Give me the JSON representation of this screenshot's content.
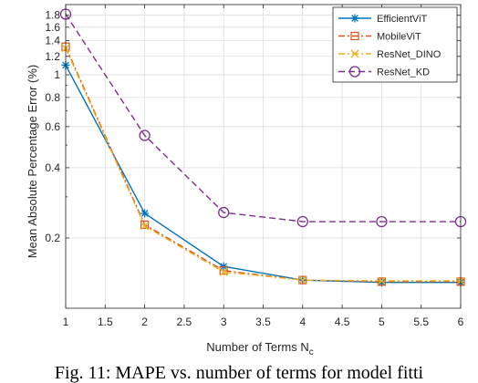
{
  "chart_data": {
    "type": "line",
    "xlabel": "Number of Terms N",
    "xlabel_subscript": "c",
    "ylabel": "Mean Absolute Percentage Error (%)",
    "yscale": "log",
    "xlim": [
      1,
      6
    ],
    "ylim": [
      0.1,
      2.0
    ],
    "xticks": [
      1,
      1.5,
      2,
      2.5,
      3,
      3.5,
      4,
      4.5,
      5,
      5.5,
      6
    ],
    "xtick_labels": [
      "1",
      "1.5",
      "2",
      "2.5",
      "3",
      "3.5",
      "4",
      "4.5",
      "5",
      "5.5",
      "6"
    ],
    "yticks": [
      0.2,
      0.4,
      0.6,
      0.8,
      1,
      1.2,
      1.4,
      1.6,
      1.8
    ],
    "ytick_labels": [
      "0.2",
      "0.4",
      "0.6",
      "0.8",
      "1",
      "1.2",
      "1.4",
      "1.6",
      "1.8"
    ],
    "grid": true,
    "legend_position": "top-right",
    "x": [
      1,
      2,
      3,
      4,
      5,
      6
    ],
    "series": [
      {
        "name": "EfficientViT",
        "color": "#0072BD",
        "marker": "asterisk",
        "dash": "solid",
        "values": [
          1.1,
          0.255,
          0.151,
          0.132,
          0.129,
          0.129
        ]
      },
      {
        "name": "MobileViT",
        "color": "#D95319",
        "marker": "square",
        "dash": "dashdot",
        "values": [
          1.32,
          0.228,
          0.145,
          0.132,
          0.13,
          0.13
        ]
      },
      {
        "name": "ResNet_DINO",
        "color": "#EDB120",
        "marker": "x",
        "dash": "dashdot",
        "values": [
          1.3,
          0.225,
          0.143,
          0.132,
          0.131,
          0.131
        ]
      },
      {
        "name": "ResNet_KD",
        "color": "#7E2F8E",
        "marker": "circle",
        "dash": "dashed",
        "values": [
          1.82,
          0.55,
          0.257,
          0.235,
          0.235,
          0.235
        ]
      }
    ]
  },
  "caption": "Fig. 11: MAPE vs. number of terms for model fitti"
}
